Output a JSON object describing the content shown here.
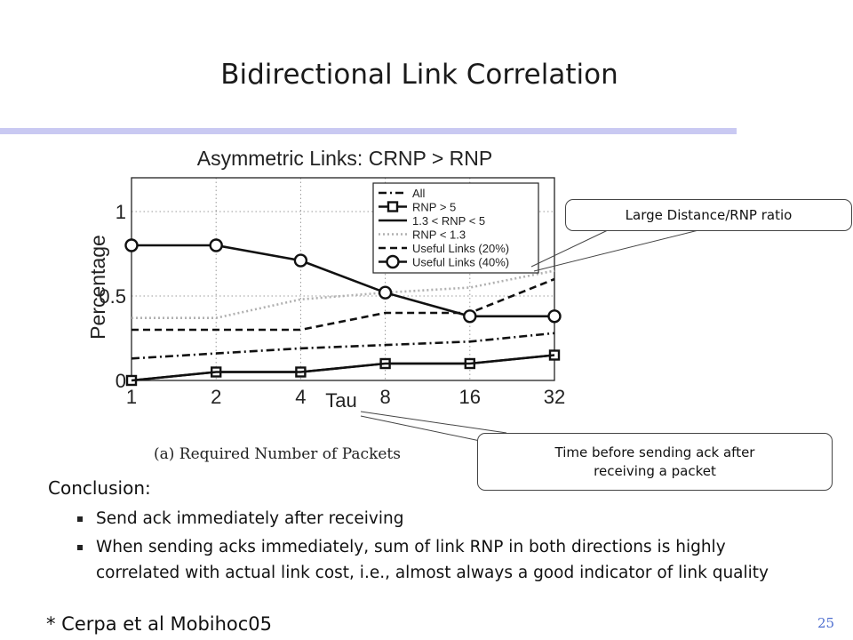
{
  "slide": {
    "title": "Bidirectional Link Correlation",
    "page_number": "25",
    "accent_color": "#c9c9f2"
  },
  "callouts": {
    "distance_ratio": "Large Distance/RNP ratio",
    "tau_line1": "Time before sending ack after",
    "tau_line2": "receiving a packet"
  },
  "body": {
    "conclusion_label": "Conclusion:",
    "bullets": [
      "Send ack immediately after receiving",
      "When sending acks immediately, sum of link RNP in both directions is highly correlated with actual link cost, i.e.,  almost always a good indicator of link quality"
    ],
    "citation": "* Cerpa et al Mobihoc05"
  },
  "chart_data": {
    "type": "line",
    "title": "Asymmetric Links: CRNP > RNP",
    "caption": "(a) Required Number of Packets",
    "xlabel": "Tau",
    "ylabel": "Percentage",
    "categories": [
      "1",
      "2",
      "4",
      "8",
      "16",
      "32"
    ],
    "ylim": [
      0,
      1.5
    ],
    "yticks": [
      "0",
      "0.5",
      "1"
    ],
    "grid": true,
    "legend_position": "top-right",
    "series": [
      {
        "name": "All",
        "style": "dashdot",
        "values": [
          0.13,
          0.16,
          0.19,
          0.21,
          0.23,
          0.28
        ]
      },
      {
        "name": "RNP > 5",
        "style": "solid-square",
        "values": [
          0.0,
          0.05,
          0.05,
          0.1,
          0.1,
          0.15
        ]
      },
      {
        "name": "1.3 < RNP < 5",
        "style": "solid",
        "values": [
          0.0,
          0.05,
          0.05,
          0.1,
          0.1,
          0.15
        ]
      },
      {
        "name": "RNP < 1.3",
        "style": "dotted",
        "values": [
          0.37,
          0.37,
          0.48,
          0.52,
          0.55,
          0.65
        ]
      },
      {
        "name": "Useful Links (20%)",
        "style": "dashed",
        "values": [
          0.3,
          0.3,
          0.3,
          0.4,
          0.4,
          0.6
        ]
      },
      {
        "name": "Useful Links (40%)",
        "style": "solid-circle",
        "values": [
          0.8,
          0.8,
          0.71,
          0.52,
          0.38,
          0.38
        ]
      }
    ]
  }
}
